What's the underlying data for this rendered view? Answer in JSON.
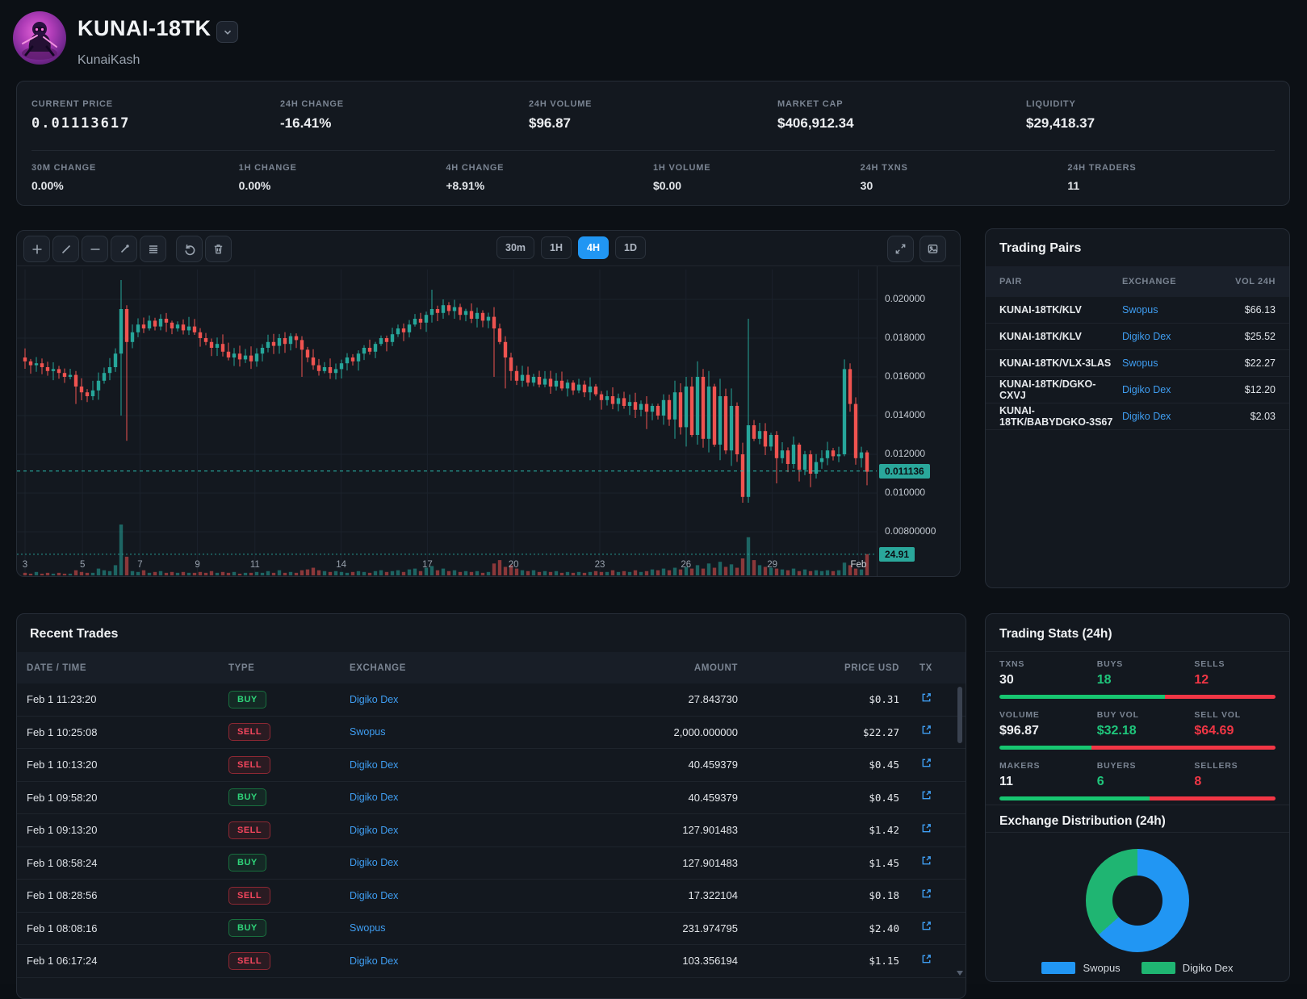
{
  "header": {
    "title": "KUNAI-18TK",
    "subtitle": "KunaiKash",
    "dropdown_icon": "chevron-down"
  },
  "stats_primary": [
    {
      "label": "CURRENT PRICE",
      "value": "0.01113617",
      "style": "mono"
    },
    {
      "label": "24H CHANGE",
      "value": "-16.41%",
      "style": "neg"
    },
    {
      "label": "24H VOLUME",
      "value": "$96.87",
      "style": "plain"
    },
    {
      "label": "MARKET CAP",
      "value": "$406,912.34",
      "style": "plain"
    },
    {
      "label": "LIQUIDITY",
      "value": "$29,418.37",
      "style": "plain"
    }
  ],
  "stats_secondary": [
    {
      "label": "30M CHANGE",
      "value": "0.00%",
      "style": "plain"
    },
    {
      "label": "1H CHANGE",
      "value": "0.00%",
      "style": "plain"
    },
    {
      "label": "4H CHANGE",
      "value": "+8.91%",
      "style": "pos"
    },
    {
      "label": "1H VOLUME",
      "value": "$0.00",
      "style": "plain"
    },
    {
      "label": "24H TXNS",
      "value": "30",
      "style": "plain"
    },
    {
      "label": "24H TRADERS",
      "value": "11",
      "style": "plain"
    }
  ],
  "chart": {
    "toolbar_icons": [
      "crosshair",
      "trend-line",
      "horizontal-line",
      "ray",
      "list",
      "undo",
      "trash"
    ],
    "timeframes": [
      "30m",
      "1H",
      "4H",
      "1D"
    ],
    "active_timeframe": "4H",
    "right_icons": [
      "fullscreen",
      "snapshot"
    ],
    "price_tag": "0.011136",
    "volume_tag": "24.91"
  },
  "chart_data": {
    "type": "candlestick+volume",
    "title": "KUNAI-18TK price, 4H candles, Jan 3 - Feb 1",
    "price_scale": 0.0001,
    "open_first": 170,
    "closes": [
      168,
      166,
      167,
      165,
      163,
      164,
      162,
      160,
      161,
      155,
      152,
      150,
      153,
      158,
      162,
      165,
      172,
      195,
      178,
      183,
      187,
      185,
      189,
      186,
      190,
      188,
      185,
      187,
      184,
      186,
      183,
      180,
      178,
      175,
      177,
      173,
      170,
      172,
      169,
      171,
      168,
      172,
      175,
      178,
      176,
      180,
      177,
      181,
      179,
      174,
      170,
      166,
      163,
      165,
      162,
      164,
      167,
      170,
      168,
      172,
      175,
      173,
      177,
      180,
      178,
      182,
      185,
      183,
      187,
      190,
      188,
      192,
      195,
      193,
      197,
      194,
      196,
      192,
      194,
      190,
      193,
      189,
      191,
      185,
      178,
      170,
      163,
      158,
      161,
      157,
      160,
      156,
      159,
      155,
      158,
      154,
      157,
      153,
      156,
      152,
      155,
      151,
      148,
      150,
      146,
      149,
      145,
      147,
      143,
      146,
      142,
      145,
      140,
      148,
      138,
      152,
      134,
      155,
      130,
      160,
      128,
      155,
      125,
      150,
      122,
      145,
      120,
      98,
      135,
      128,
      132,
      124,
      130,
      118,
      122,
      115,
      125,
      112,
      120,
      110,
      116,
      118,
      122,
      119,
      120,
      164,
      146,
      118,
      121,
      111
    ],
    "volumes": [
      3,
      2,
      4,
      2,
      3,
      2,
      3,
      2,
      2,
      6,
      4,
      3,
      3,
      8,
      6,
      5,
      12,
      60,
      22,
      5,
      4,
      6,
      3,
      4,
      5,
      3,
      4,
      3,
      4,
      3,
      3,
      4,
      3,
      5,
      3,
      4,
      3,
      4,
      2,
      3,
      3,
      4,
      3,
      5,
      3,
      6,
      3,
      4,
      3,
      6,
      7,
      9,
      6,
      5,
      4,
      5,
      4,
      3,
      4,
      5,
      4,
      3,
      5,
      6,
      4,
      5,
      6,
      4,
      7,
      8,
      5,
      9,
      11,
      6,
      8,
      5,
      6,
      4,
      5,
      4,
      5,
      3,
      4,
      14,
      18,
      10,
      12,
      8,
      6,
      5,
      6,
      4,
      5,
      4,
      5,
      3,
      4,
      3,
      4,
      3,
      4,
      5,
      4,
      4,
      6,
      4,
      5,
      4,
      6,
      4,
      5,
      7,
      6,
      8,
      6,
      9,
      7,
      10,
      8,
      12,
      8,
      14,
      9,
      16,
      10,
      13,
      9,
      20,
      45,
      18,
      12,
      10,
      9,
      8,
      7,
      6,
      8,
      5,
      7,
      5,
      6,
      5,
      6,
      5,
      6,
      15,
      12,
      8,
      7,
      25
    ],
    "wick_overrides": {
      "9": [
        163,
        146
      ],
      "17": [
        210,
        140
      ],
      "18": [
        197,
        127
      ],
      "49": [
        181,
        160
      ],
      "72": [
        205,
        188
      ],
      "74": [
        200,
        190
      ],
      "83": [
        196,
        160
      ],
      "85": [
        181,
        154
      ],
      "110": [
        150,
        133
      ],
      "115": [
        158,
        128
      ],
      "117": [
        160,
        124
      ],
      "119": [
        168,
        125
      ],
      "121": [
        163,
        121
      ],
      "123": [
        159,
        117
      ],
      "125": [
        154,
        114
      ],
      "127": [
        126,
        95
      ],
      "128": [
        190,
        95
      ],
      "133": [
        132,
        105
      ],
      "137": [
        126,
        106
      ],
      "139": [
        122,
        103
      ],
      "145": [
        169,
        119
      ],
      "146": [
        167,
        142
      ],
      "149": [
        122,
        104
      ]
    },
    "last_price": 0.011136,
    "last_volume_label": 24.91,
    "y_ticks": [
      {
        "label": "0.020000",
        "units": 200
      },
      {
        "label": "0.018000",
        "units": 180
      },
      {
        "label": "0.016000",
        "units": 160
      },
      {
        "label": "0.014000",
        "units": 140
      },
      {
        "label": "0.012000",
        "units": 120
      },
      {
        "label": "0.010000",
        "units": 100
      },
      {
        "label": "0.00800000",
        "units": 80
      }
    ],
    "x_ticks": [
      {
        "label": "3",
        "day_offset": 0
      },
      {
        "label": "5",
        "day_offset": 2
      },
      {
        "label": "7",
        "day_offset": 4
      },
      {
        "label": "9",
        "day_offset": 6
      },
      {
        "label": "11",
        "day_offset": 8
      },
      {
        "label": "14",
        "day_offset": 11
      },
      {
        "label": "17",
        "day_offset": 14
      },
      {
        "label": "20",
        "day_offset": 17
      },
      {
        "label": "23",
        "day_offset": 20
      },
      {
        "label": "26",
        "day_offset": 23
      },
      {
        "label": "29",
        "day_offset": 26
      },
      {
        "label": "Feb",
        "day_offset": 29,
        "major": true
      }
    ],
    "colors": {
      "up": "#26a69a",
      "down": "#ef5350",
      "current_price_line": "#2bbbad",
      "grid": "#1b222b"
    }
  },
  "trading_pairs": {
    "title": "Trading Pairs",
    "headers": [
      "PAIR",
      "EXCHANGE",
      "VOL 24H"
    ],
    "rows": [
      {
        "pair": "KUNAI-18TK/KLV",
        "exchange": "Swopus",
        "vol": "$66.13"
      },
      {
        "pair": "KUNAI-18TK/KLV",
        "exchange": "Digiko Dex",
        "vol": "$25.52"
      },
      {
        "pair": "KUNAI-18TK/VLX-3LAS",
        "exchange": "Swopus",
        "vol": "$22.27"
      },
      {
        "pair": "KUNAI-18TK/DGKO-CXVJ",
        "exchange": "Digiko Dex",
        "vol": "$12.20"
      },
      {
        "pair": "KUNAI-18TK/BABYDGKO-3S67",
        "exchange": "Digiko Dex",
        "vol": "$2.03"
      }
    ]
  },
  "recent_trades": {
    "title": "Recent Trades",
    "headers": [
      "DATE / TIME",
      "TYPE",
      "EXCHANGE",
      "AMOUNT",
      "PRICE USD",
      "TX"
    ],
    "rows": [
      {
        "time": "Feb 1 11:23:20",
        "type": "BUY",
        "exchange": "Digiko Dex",
        "amount": "27.843730",
        "price": "$0.31"
      },
      {
        "time": "Feb 1 10:25:08",
        "type": "SELL",
        "exchange": "Swopus",
        "amount": "2,000.000000",
        "price": "$22.27"
      },
      {
        "time": "Feb 1 10:13:20",
        "type": "SELL",
        "exchange": "Digiko Dex",
        "amount": "40.459379",
        "price": "$0.45"
      },
      {
        "time": "Feb 1 09:58:20",
        "type": "BUY",
        "exchange": "Digiko Dex",
        "amount": "40.459379",
        "price": "$0.45"
      },
      {
        "time": "Feb 1 09:13:20",
        "type": "SELL",
        "exchange": "Digiko Dex",
        "amount": "127.901483",
        "price": "$1.42"
      },
      {
        "time": "Feb 1 08:58:24",
        "type": "BUY",
        "exchange": "Digiko Dex",
        "amount": "127.901483",
        "price": "$1.45"
      },
      {
        "time": "Feb 1 08:28:56",
        "type": "SELL",
        "exchange": "Digiko Dex",
        "amount": "17.322104",
        "price": "$0.18"
      },
      {
        "time": "Feb 1 08:08:16",
        "type": "BUY",
        "exchange": "Swopus",
        "amount": "231.974795",
        "price": "$2.40"
      },
      {
        "time": "Feb 1 06:17:24",
        "type": "SELL",
        "exchange": "Digiko Dex",
        "amount": "103.356194",
        "price": "$1.15"
      }
    ]
  },
  "trading_stats": {
    "title": "Trading Stats (24h)",
    "blocks": [
      {
        "cells": [
          {
            "label": "TXNS",
            "value": "30",
            "tone": "white"
          },
          {
            "label": "BUYS",
            "value": "18",
            "tone": "green"
          },
          {
            "label": "SELLS",
            "value": "12",
            "tone": "red"
          }
        ],
        "green_pct": 60
      },
      {
        "cells": [
          {
            "label": "VOLUME",
            "value": "$96.87",
            "tone": "white"
          },
          {
            "label": "BUY VOL",
            "value": "$32.18",
            "tone": "green"
          },
          {
            "label": "SELL VOL",
            "value": "$64.69",
            "tone": "red"
          }
        ],
        "green_pct": 33.2
      },
      {
        "cells": [
          {
            "label": "MAKERS",
            "value": "11",
            "tone": "white"
          },
          {
            "label": "BUYERS",
            "value": "6",
            "tone": "green"
          },
          {
            "label": "SELLERS",
            "value": "8",
            "tone": "red"
          }
        ],
        "green_pct": 54.5
      }
    ]
  },
  "exchange_distribution": {
    "title": "Exchange Distribution (24h)",
    "slices": [
      {
        "name": "Swopus",
        "pct": 63.5,
        "color": "#2196f3"
      },
      {
        "name": "Digiko Dex",
        "pct": 36.5,
        "color": "#1fb572"
      }
    ]
  },
  "colors": {
    "accent_blue": "#2196f3",
    "green": "#1fc77c",
    "red": "#f23645",
    "tag_teal": "#2aa79b",
    "link_blue": "#3f9ef2"
  }
}
